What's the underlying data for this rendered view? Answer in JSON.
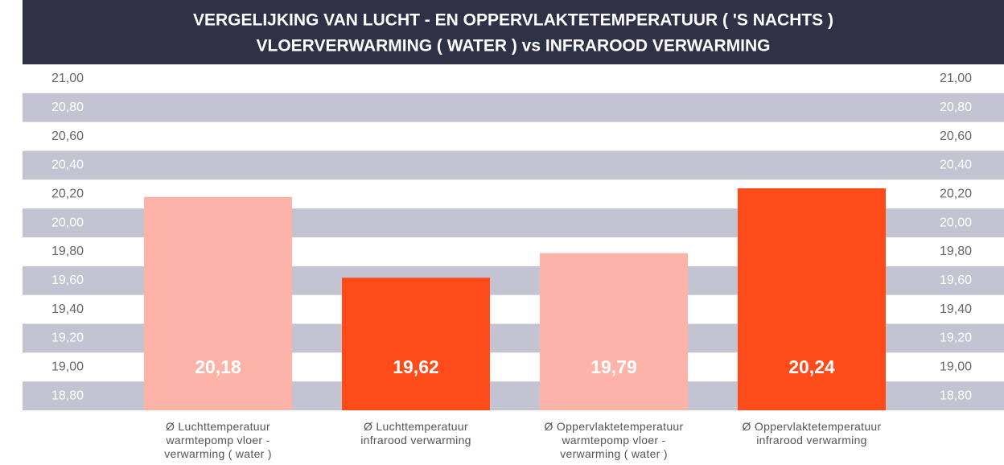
{
  "chart_data": {
    "type": "bar",
    "title": "VERGELIJKING VAN LUCHT - EN OPPERVLAKTETEMPERATUUR ( 'S NACHTS )",
    "subtitle": "VLOERVERWARMING ( WATER ) vs INFRAROOD VERWARMING",
    "categories": [
      "Ø Luchttemperatuur\nwarmtepomp vloer -\nverwarming ( water )",
      "Ø Luchttemperatuur\ninfrarood verwarming",
      "Ø Oppervlaktetemperatuur\nwarmtepomp vloer -\nverwarming ( water )",
      "Ø Oppervlaktetemperatuur\ninfrarood verwarming"
    ],
    "values": [
      20.18,
      19.62,
      19.79,
      20.24
    ],
    "value_labels": [
      "20,18",
      "19,62",
      "19,79",
      "20,24"
    ],
    "colors": [
      "#fdb3a8",
      "#ff4a1a",
      "#fdb3a8",
      "#ff4a1a"
    ],
    "ylim": [
      18.7,
      21.1
    ],
    "yticks": [
      {
        "value": 18.8,
        "label": "18,80"
      },
      {
        "value": 19.0,
        "label": "19,00"
      },
      {
        "value": 19.2,
        "label": "19,20"
      },
      {
        "value": 19.4,
        "label": "19,40"
      },
      {
        "value": 19.6,
        "label": "19,60"
      },
      {
        "value": 19.8,
        "label": "19,80"
      },
      {
        "value": 20.0,
        "label": "20,00"
      },
      {
        "value": 20.2,
        "label": "20,20"
      },
      {
        "value": 20.4,
        "label": "20,40"
      },
      {
        "value": 20.6,
        "label": "20,60"
      },
      {
        "value": 20.8,
        "label": "20,80"
      },
      {
        "value": 21.0,
        "label": "21,00"
      }
    ],
    "grid": true
  }
}
